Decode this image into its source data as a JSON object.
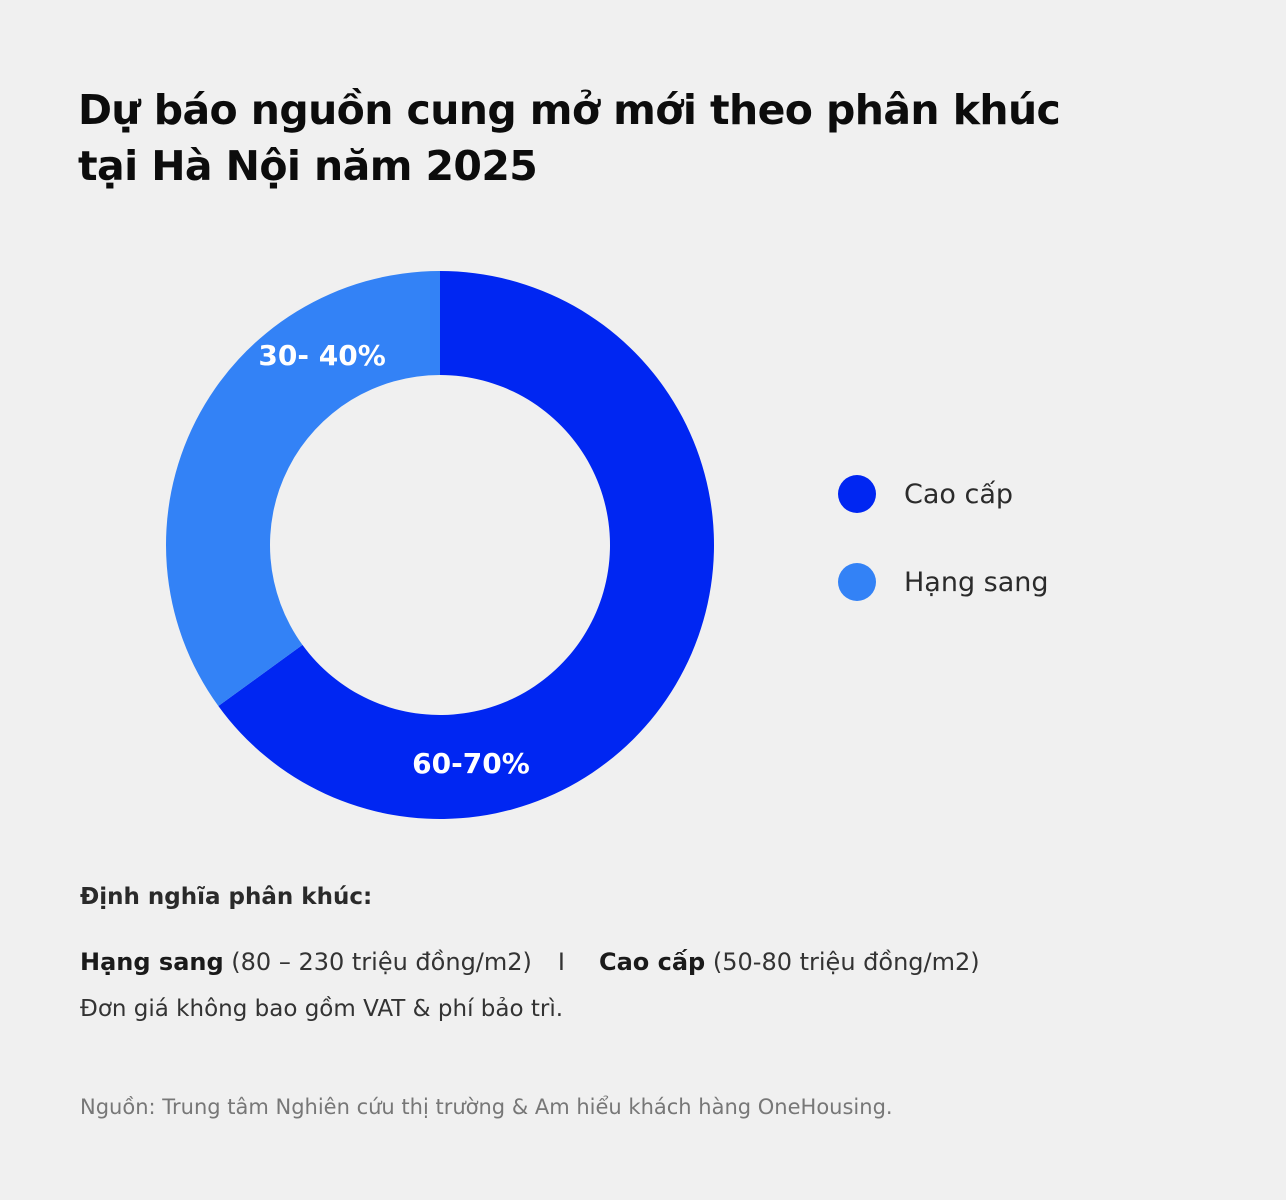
{
  "title": {
    "line1": "Dự báo nguồn cung mở mới theo phân khúc",
    "line2": "tại Hà Nội năm 2025"
  },
  "chart_data": {
    "type": "pie",
    "donut": true,
    "title": "Dự báo nguồn cung mở mới theo phân khúc tại Hà Nội năm 2025",
    "series": [
      {
        "name": "Cao cấp",
        "value": 65,
        "label": "60-70%",
        "color": "#0026f2"
      },
      {
        "name": "Hạng sang",
        "value": 35,
        "label": "30- 40%",
        "color": "#3382f6"
      }
    ],
    "legend_position": "right"
  },
  "legend": [
    {
      "label": "Cao cấp",
      "color": "#0026f2"
    },
    {
      "label": "Hạng sang",
      "color": "#3382f6"
    }
  ],
  "definitions": {
    "heading": "Định nghĩa phân khúc:",
    "luxury_name": "Hạng sang",
    "luxury_range": " (80 – 230 triệu đồng/m2)",
    "separator": "I",
    "premium_name": "Cao cấp",
    "premium_range": " (50-80 triệu đồng/m2)",
    "note": "Đơn giá không bao gồm VAT & phí bảo trì."
  },
  "source": "Nguồn: Trung tâm Nghiên cứu thị trường & Am hiểu khách hàng OneHousing."
}
